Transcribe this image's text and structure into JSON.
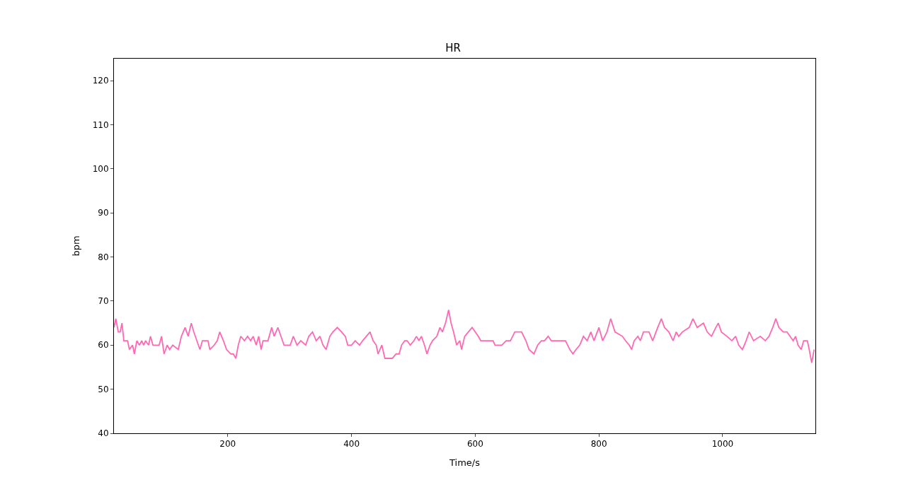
{
  "chart_data": {
    "type": "line",
    "title": "HR",
    "xlabel": "Time/s",
    "ylabel": "bpm",
    "xlim": [
      16,
      1150
    ],
    "ylim": [
      40,
      125
    ],
    "xticks": [
      200,
      400,
      600,
      800,
      1000
    ],
    "yticks": [
      40,
      50,
      60,
      70,
      80,
      90,
      100,
      110,
      120
    ],
    "marker": "none",
    "line_style": "solid",
    "x": [
      16,
      19,
      23,
      26,
      29,
      32,
      38,
      41,
      46,
      49,
      53,
      57,
      61,
      64,
      67,
      72,
      75,
      79,
      89,
      93,
      97,
      102,
      106,
      111,
      120,
      125,
      131,
      136,
      141,
      145,
      150,
      155,
      159,
      168,
      171,
      178,
      183,
      187,
      193,
      198,
      205,
      209,
      213,
      217,
      221,
      227,
      232,
      237,
      241,
      246,
      250,
      254,
      257,
      265,
      271,
      275,
      281,
      286,
      291,
      301,
      306,
      312,
      318,
      326,
      331,
      337,
      343,
      349,
      354,
      359,
      365,
      370,
      377,
      384,
      390,
      394,
      400,
      406,
      413,
      418,
      424,
      430,
      435,
      440,
      443,
      449,
      454,
      466,
      472,
      477,
      481,
      486,
      490,
      495,
      501,
      505,
      509,
      513,
      518,
      522,
      527,
      531,
      538,
      543,
      547,
      552,
      557,
      561,
      565,
      570,
      575,
      578,
      583,
      589,
      595,
      600,
      605,
      609,
      621,
      629,
      632,
      643,
      650,
      657,
      664,
      675,
      682,
      687,
      695,
      701,
      707,
      712,
      718,
      723,
      735,
      746,
      753,
      758,
      763,
      769,
      775,
      781,
      787,
      792,
      800,
      806,
      813,
      819,
      826,
      838,
      843,
      849,
      853,
      857,
      863,
      867,
      872,
      881,
      887,
      895,
      901,
      906,
      913,
      920,
      925,
      929,
      935,
      946,
      952,
      959,
      969,
      975,
      982,
      989,
      993,
      998,
      1007,
      1015,
      1021,
      1026,
      1032,
      1038,
      1043,
      1050,
      1061,
      1069,
      1075,
      1081,
      1086,
      1091,
      1098,
      1104,
      1109,
      1114,
      1118,
      1122,
      1127,
      1131,
      1137,
      1140,
      1144,
      1148
    ],
    "series": [
      {
        "color": "#ff69b4",
        "values": [
          64,
          66,
          63,
          63,
          65,
          61,
          61,
          59,
          60,
          58,
          61,
          60,
          61,
          60,
          61,
          60,
          62,
          60,
          60,
          62,
          58,
          60,
          59,
          60,
          59,
          62,
          64,
          62,
          65,
          63,
          61,
          59,
          61,
          61,
          59,
          60,
          61,
          63,
          61,
          59,
          58,
          58,
          57,
          60,
          62,
          61,
          62,
          61,
          62,
          60,
          62,
          59,
          61,
          61,
          64,
          62,
          64,
          62,
          60,
          60,
          62,
          60,
          61,
          60,
          62,
          63,
          61,
          62,
          60,
          59,
          62,
          63,
          64,
          63,
          62,
          60,
          60,
          61,
          60,
          61,
          62,
          63,
          61,
          60,
          58,
          60,
          57,
          57,
          58,
          58,
          60,
          61,
          61,
          60,
          61,
          62,
          61,
          62,
          60,
          58,
          60,
          61,
          62,
          64,
          63,
          65,
          68,
          65,
          63,
          60,
          61,
          59,
          62,
          63,
          64,
          63,
          62,
          61,
          61,
          61,
          60,
          60,
          61,
          61,
          63,
          63,
          61,
          59,
          58,
          60,
          61,
          61,
          62,
          61,
          61,
          61,
          59,
          58,
          59,
          60,
          62,
          61,
          63,
          61,
          64,
          61,
          63,
          66,
          63,
          62,
          61,
          60,
          59,
          61,
          62,
          61,
          63,
          63,
          61,
          64,
          66,
          64,
          63,
          61,
          63,
          62,
          63,
          64,
          66,
          64,
          65,
          63,
          62,
          64,
          65,
          63,
          62,
          61,
          62,
          60,
          59,
          61,
          63,
          61,
          62,
          61,
          62,
          64,
          66,
          64,
          63,
          63,
          62,
          61,
          62,
          60,
          59,
          61,
          61,
          59,
          56,
          59
        ]
      }
    ]
  }
}
